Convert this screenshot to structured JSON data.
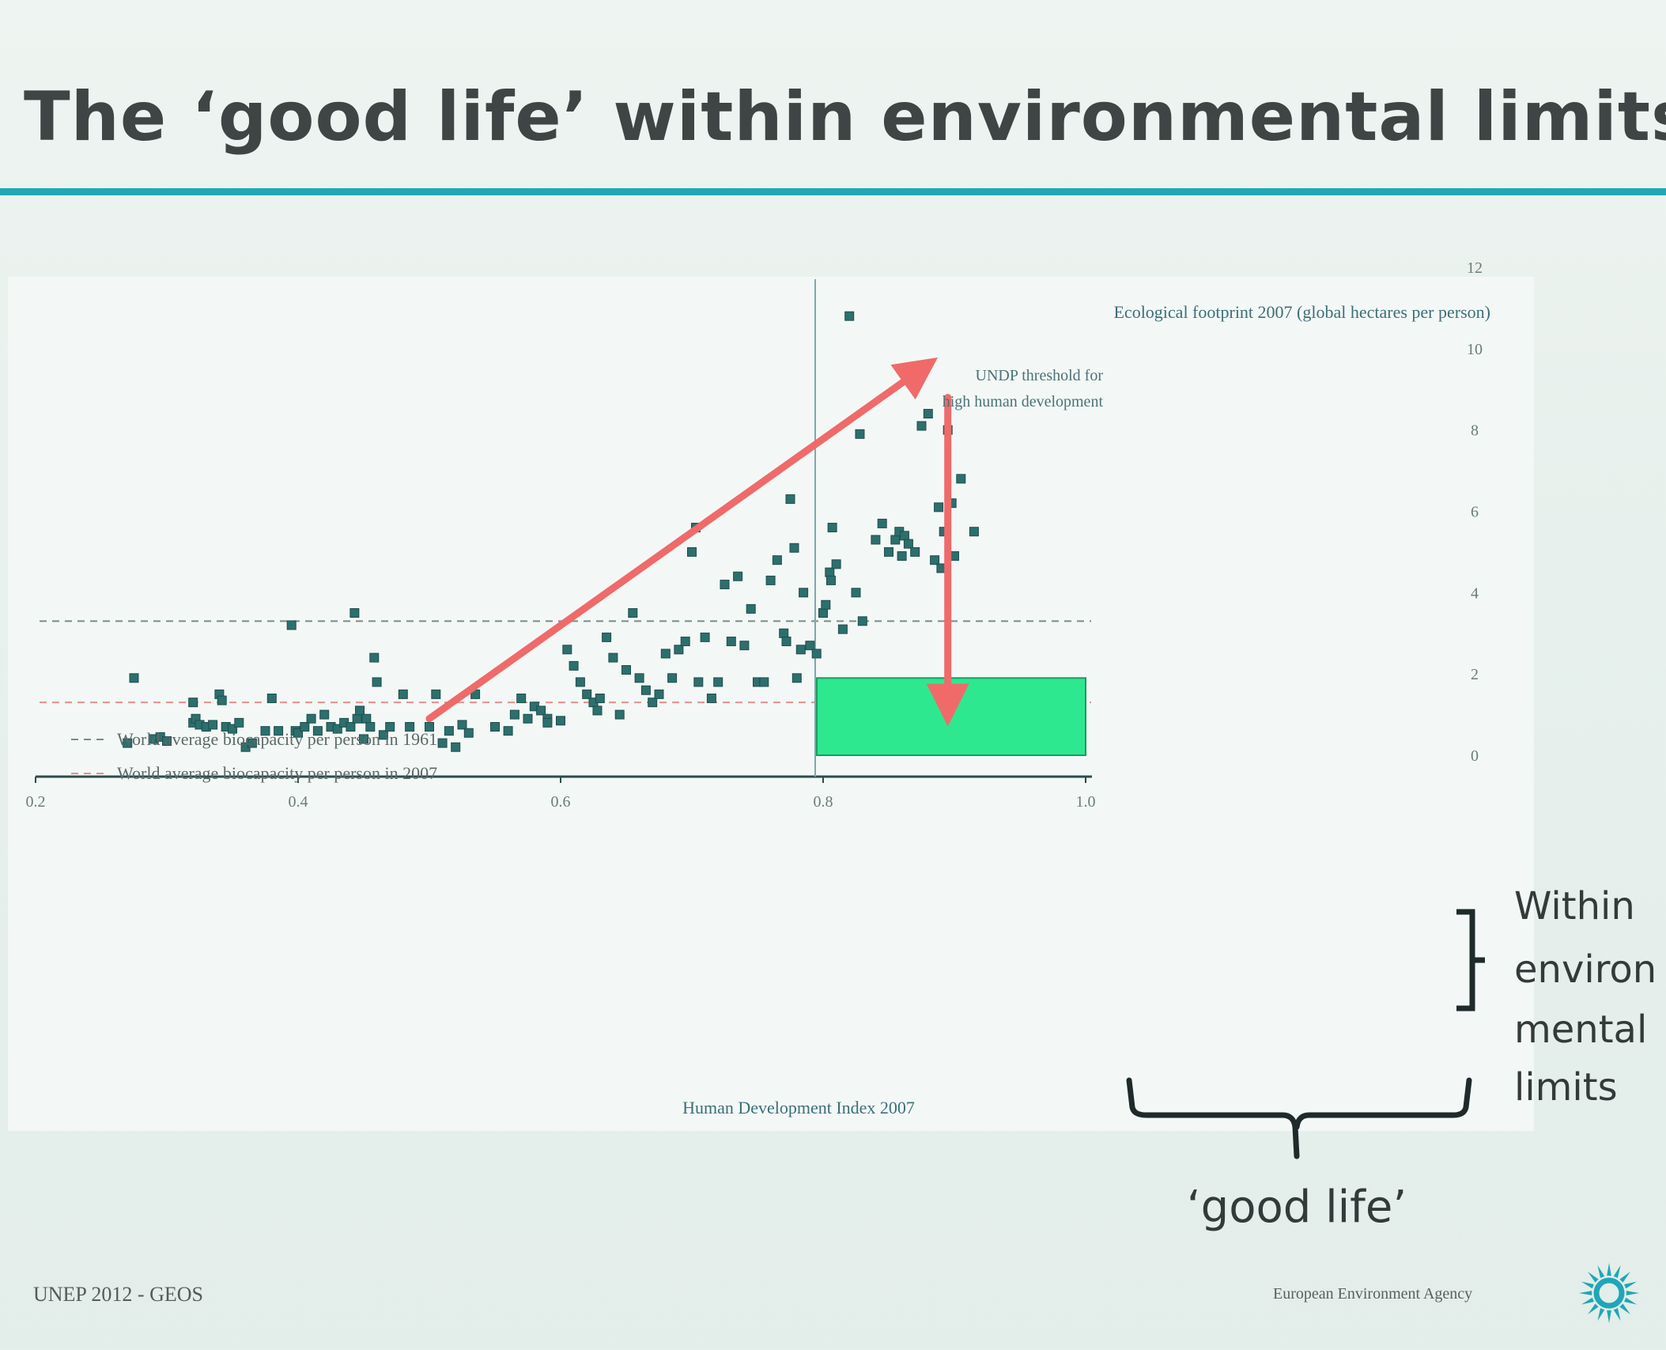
{
  "slide": {
    "title": "The ‘good life’ within environmental limits",
    "footer_left": "UNEP 2012 - GEOS",
    "footer_right": "European Environment Agency",
    "logo_icon": "eea-sun-icon"
  },
  "colors": {
    "title_rule": "#1fa8b5",
    "points": "#2d6f6c",
    "arrow": "#f06a6a",
    "good_life_box": "#2ee88f",
    "line_1961": "#7a8c88",
    "line_2007": "#e98e8e"
  },
  "chart_data": {
    "type": "scatter",
    "xlabel": "Human Development Index 2007",
    "ylabel": "Ecological footprint 2007 (global hectares per person)",
    "xlim": [
      0.2,
      1.0
    ],
    "ylim": [
      0,
      12
    ],
    "x_ticks": [
      "0.2",
      "0.4",
      "0.6",
      "0.8",
      "1.0"
    ],
    "x_tick_values": [
      0.2,
      0.4,
      0.6,
      0.8,
      1.0
    ],
    "y_ticks": [
      "12",
      "10",
      "8",
      "6",
      "4",
      "2",
      "0"
    ],
    "y_tick_values": [
      12,
      10,
      8,
      6,
      4,
      2,
      0
    ],
    "reference_lines": [
      {
        "label": "World average biocapacity  per person in 1961",
        "y": 3.3,
        "style": "dashed",
        "color": "#7a8c88"
      },
      {
        "label": "World average biocapacity per person in 2007",
        "y": 1.3,
        "style": "dashed",
        "color": "#e98e8e"
      }
    ],
    "threshold": {
      "label_line1": "UNDP threshold for",
      "label_line2": "high human development",
      "x": 0.8
    },
    "annotations": {
      "within_lines": [
        "Within",
        "environ",
        "mental",
        "limits"
      ],
      "good_life_label": "‘good life’",
      "good_life_box": {
        "x0": 0.8,
        "x1": 1.0,
        "y0": 0,
        "y1": 1.9
      }
    },
    "arrows": [
      {
        "from": [
          0.5,
          0.9
        ],
        "to": [
          0.875,
          9.5
        ]
      },
      {
        "from": [
          0.895,
          8.8
        ],
        "to": [
          0.895,
          1.2
        ]
      }
    ],
    "points": [
      [
        0.27,
        0.3
      ],
      [
        0.275,
        1.9
      ],
      [
        0.29,
        0.4
      ],
      [
        0.295,
        0.45
      ],
      [
        0.3,
        0.35
      ],
      [
        0.32,
        1.3
      ],
      [
        0.32,
        0.8
      ],
      [
        0.322,
        0.9
      ],
      [
        0.325,
        0.75
      ],
      [
        0.33,
        0.7
      ],
      [
        0.335,
        0.75
      ],
      [
        0.34,
        1.5
      ],
      [
        0.342,
        1.35
      ],
      [
        0.345,
        0.7
      ],
      [
        0.35,
        0.65
      ],
      [
        0.355,
        0.8
      ],
      [
        0.36,
        0.2
      ],
      [
        0.365,
        0.3
      ],
      [
        0.375,
        0.6
      ],
      [
        0.38,
        1.4
      ],
      [
        0.385,
        0.6
      ],
      [
        0.395,
        3.2
      ],
      [
        0.398,
        0.6
      ],
      [
        0.4,
        0.55
      ],
      [
        0.405,
        0.7
      ],
      [
        0.41,
        0.9
      ],
      [
        0.415,
        0.6
      ],
      [
        0.42,
        1.0
      ],
      [
        0.425,
        0.7
      ],
      [
        0.43,
        0.65
      ],
      [
        0.435,
        0.8
      ],
      [
        0.44,
        0.7
      ],
      [
        0.443,
        3.5
      ],
      [
        0.445,
        0.9
      ],
      [
        0.447,
        1.1
      ],
      [
        0.45,
        0.4
      ],
      [
        0.452,
        0.9
      ],
      [
        0.455,
        0.7
      ],
      [
        0.458,
        2.4
      ],
      [
        0.46,
        1.8
      ],
      [
        0.465,
        0.5
      ],
      [
        0.47,
        0.7
      ],
      [
        0.48,
        1.5
      ],
      [
        0.485,
        0.7
      ],
      [
        0.5,
        0.7
      ],
      [
        0.505,
        1.5
      ],
      [
        0.51,
        0.3
      ],
      [
        0.515,
        0.6
      ],
      [
        0.52,
        0.2
      ],
      [
        0.525,
        0.75
      ],
      [
        0.53,
        0.55
      ],
      [
        0.535,
        1.5
      ],
      [
        0.55,
        0.7
      ],
      [
        0.56,
        0.6
      ],
      [
        0.565,
        1.0
      ],
      [
        0.57,
        1.4
      ],
      [
        0.575,
        0.9
      ],
      [
        0.58,
        1.2
      ],
      [
        0.585,
        1.1
      ],
      [
        0.59,
        0.9
      ],
      [
        0.59,
        0.8
      ],
      [
        0.6,
        0.85
      ],
      [
        0.605,
        2.6
      ],
      [
        0.61,
        2.2
      ],
      [
        0.615,
        1.8
      ],
      [
        0.62,
        1.5
      ],
      [
        0.625,
        1.3
      ],
      [
        0.628,
        1.1
      ],
      [
        0.63,
        1.4
      ],
      [
        0.635,
        2.9
      ],
      [
        0.64,
        2.4
      ],
      [
        0.645,
        1.0
      ],
      [
        0.65,
        2.1
      ],
      [
        0.655,
        3.5
      ],
      [
        0.66,
        1.9
      ],
      [
        0.665,
        1.6
      ],
      [
        0.67,
        1.3
      ],
      [
        0.675,
        1.5
      ],
      [
        0.68,
        2.5
      ],
      [
        0.685,
        1.9
      ],
      [
        0.69,
        2.6
      ],
      [
        0.695,
        2.8
      ],
      [
        0.7,
        5.0
      ],
      [
        0.703,
        5.6
      ],
      [
        0.705,
        1.8
      ],
      [
        0.71,
        2.9
      ],
      [
        0.715,
        1.4
      ],
      [
        0.72,
        1.8
      ],
      [
        0.725,
        4.2
      ],
      [
        0.73,
        2.8
      ],
      [
        0.735,
        4.4
      ],
      [
        0.74,
        2.7
      ],
      [
        0.745,
        3.6
      ],
      [
        0.75,
        1.8
      ],
      [
        0.755,
        1.8
      ],
      [
        0.76,
        4.3
      ],
      [
        0.765,
        4.8
      ],
      [
        0.77,
        3.0
      ],
      [
        0.772,
        2.8
      ],
      [
        0.775,
        6.3
      ],
      [
        0.778,
        5.1
      ],
      [
        0.78,
        1.9
      ],
      [
        0.783,
        2.6
      ],
      [
        0.785,
        4.0
      ],
      [
        0.79,
        2.7
      ],
      [
        0.795,
        2.5
      ],
      [
        0.8,
        3.5
      ],
      [
        0.802,
        3.7
      ],
      [
        0.805,
        4.5
      ],
      [
        0.806,
        4.3
      ],
      [
        0.807,
        5.6
      ],
      [
        0.81,
        4.7
      ],
      [
        0.815,
        3.1
      ],
      [
        0.82,
        10.8
      ],
      [
        0.825,
        4.0
      ],
      [
        0.828,
        7.9
      ],
      [
        0.83,
        3.3
      ],
      [
        0.84,
        5.3
      ],
      [
        0.845,
        5.7
      ],
      [
        0.85,
        5.0
      ],
      [
        0.855,
        5.3
      ],
      [
        0.858,
        5.5
      ],
      [
        0.86,
        4.9
      ],
      [
        0.862,
        5.4
      ],
      [
        0.865,
        5.2
      ],
      [
        0.868,
        9.5
      ],
      [
        0.87,
        5.0
      ],
      [
        0.875,
        8.1
      ],
      [
        0.88,
        8.4
      ],
      [
        0.885,
        4.8
      ],
      [
        0.888,
        6.1
      ],
      [
        0.89,
        4.6
      ],
      [
        0.892,
        5.5
      ],
      [
        0.895,
        8.0
      ],
      [
        0.898,
        6.2
      ],
      [
        0.9,
        4.9
      ],
      [
        0.905,
        6.8
      ],
      [
        0.915,
        5.5
      ]
    ]
  }
}
